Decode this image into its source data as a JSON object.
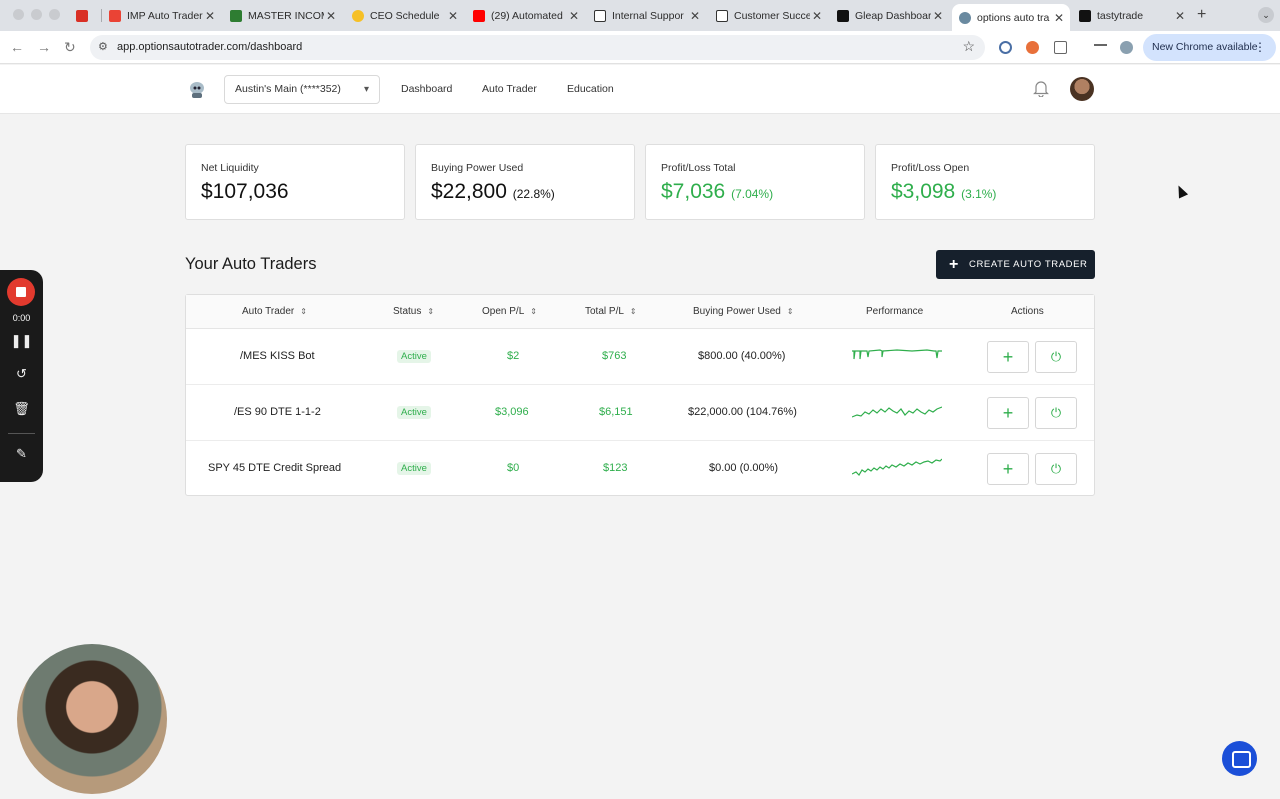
{
  "browser": {
    "tabs": [
      {
        "title": "",
        "color": "#d93025"
      },
      {
        "title": "IMP Auto Trader",
        "color": "#ea4335"
      },
      {
        "title": "MASTER INCOM",
        "color": "#2e7d32"
      },
      {
        "title": "CEO Schedule",
        "color": "#f6c026"
      },
      {
        "title": "(29) Automated",
        "color": "#ff0000"
      },
      {
        "title": "Internal Suppor",
        "color": "#333333"
      },
      {
        "title": "Customer Succe",
        "color": "#333333"
      },
      {
        "title": "Gleap Dashboar",
        "color": "#111111"
      },
      {
        "title": "options auto tra",
        "color": "#6a8aa0"
      },
      {
        "title": "tastytrade",
        "color": "#111111"
      }
    ],
    "url": "app.optionsautotrader.com/dashboard",
    "update_label": "New Chrome available"
  },
  "header": {
    "account_selector": "Austin's Main (****352)",
    "nav": [
      "Dashboard",
      "Auto Trader",
      "Education"
    ]
  },
  "stats": [
    {
      "label": "Net Liquidity",
      "value": "$107,036",
      "pct": "",
      "green": false
    },
    {
      "label": "Buying Power Used",
      "value": "$22,800",
      "pct": "(22.8%)",
      "green": false
    },
    {
      "label": "Profit/Loss Total",
      "value": "$7,036",
      "pct": "(7.04%)",
      "green": true
    },
    {
      "label": "Profit/Loss Open",
      "value": "$3,098",
      "pct": "(3.1%)",
      "green": true
    }
  ],
  "section": {
    "title": "Your Auto Traders",
    "create_label": "CREATE AUTO TRADER"
  },
  "table": {
    "headers": [
      "Auto Trader",
      "Status",
      "Open P/L",
      "Total P/L",
      "Buying Power Used",
      "Performance",
      "Actions"
    ],
    "rows": [
      {
        "name": "/MES KISS Bot",
        "status": "Active",
        "open_pl": "$2",
        "total_pl": "$763",
        "bp_used": "$800.00 (40.00%)"
      },
      {
        "name": "/ES 90 DTE 1-1-2",
        "status": "Active",
        "open_pl": "$3,096",
        "total_pl": "$6,151",
        "bp_used": "$22,000.00 (104.76%)"
      },
      {
        "name": "SPY 45 DTE Credit Spread",
        "status": "Active",
        "open_pl": "$0",
        "total_pl": "$123",
        "bp_used": "$0.00 (0.00%)"
      }
    ]
  },
  "recorder": {
    "time": "0:00"
  },
  "colors": {
    "accent_green": "#2fae4c",
    "dark_button": "#16202c",
    "record_red": "#e23a2e"
  }
}
